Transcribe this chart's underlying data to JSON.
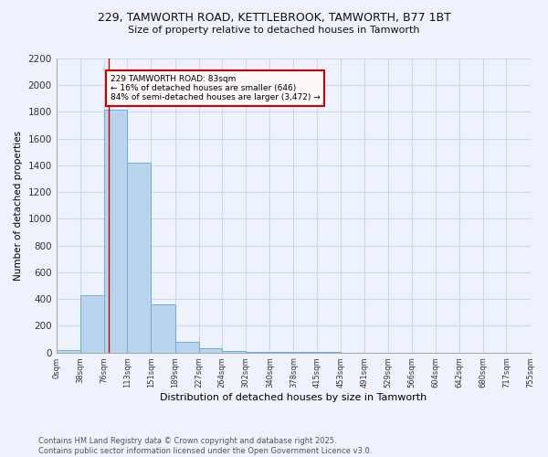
{
  "title_line1": "229, TAMWORTH ROAD, KETTLEBROOK, TAMWORTH, B77 1BT",
  "title_line2": "Size of property relative to detached houses in Tamworth",
  "xlabel": "Distribution of detached houses by size in Tamworth",
  "ylabel": "Number of detached properties",
  "bin_edges": [
    0,
    38,
    76,
    113,
    151,
    189,
    227,
    264,
    302,
    340,
    378,
    415,
    453,
    491,
    529,
    566,
    604,
    642,
    680,
    717,
    755
  ],
  "bar_heights": [
    20,
    430,
    1820,
    1420,
    360,
    80,
    30,
    8,
    3,
    2,
    1,
    1,
    0,
    0,
    0,
    0,
    0,
    0,
    0,
    0
  ],
  "bar_color": "#bad4ed",
  "bar_edge_color": "#6aaed6",
  "grid_color": "#c8d8ee",
  "background_color": "#eef2fc",
  "vline_x": 83,
  "vline_color": "#cc0000",
  "ylim": [
    0,
    2200
  ],
  "yticks": [
    0,
    200,
    400,
    600,
    800,
    1000,
    1200,
    1400,
    1600,
    1800,
    2000,
    2200
  ],
  "annotation_text": "229 TAMWORTH ROAD: 83sqm\n← 16% of detached houses are smaller (646)\n84% of semi-detached houses are larger (3,472) →",
  "annotation_box_facecolor": "#fff8f8",
  "annotation_border_color": "#cc0000",
  "footer_line1": "Contains HM Land Registry data © Crown copyright and database right 2025.",
  "footer_line2": "Contains public sector information licensed under the Open Government Licence v3.0."
}
